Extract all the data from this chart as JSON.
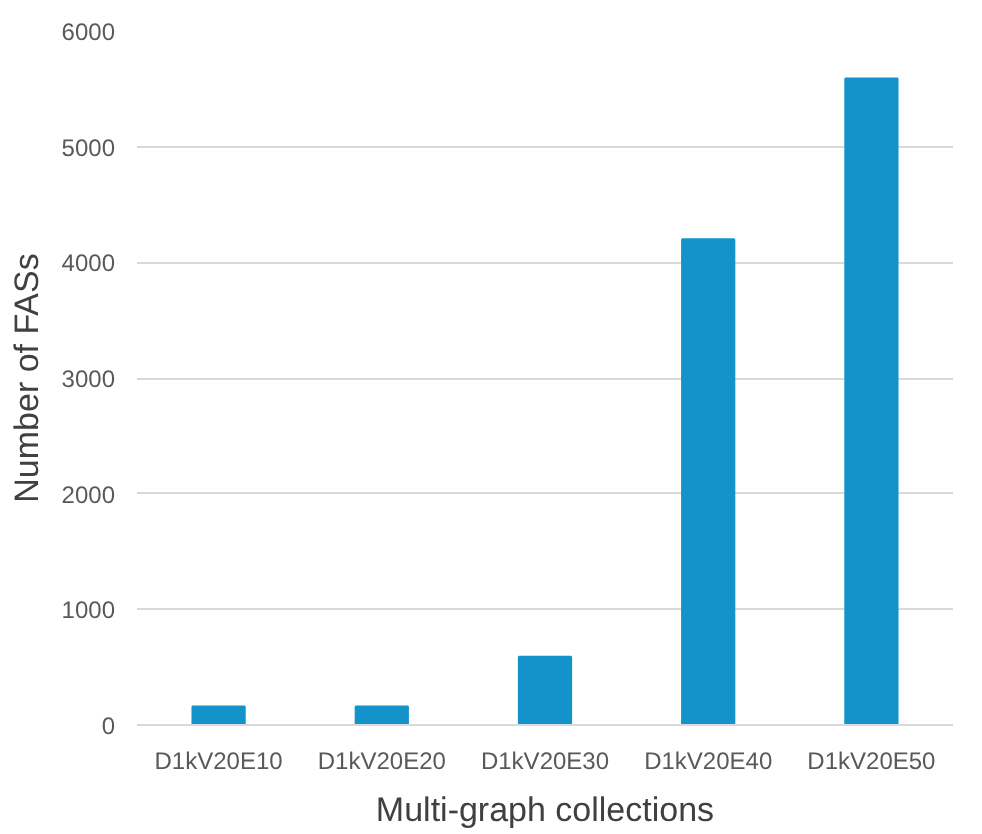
{
  "chart_data": {
    "type": "bar",
    "xlabel": "Multi-graph collections",
    "ylabel": "Number of FASs",
    "categories": [
      "D1kV20E10",
      "D1kV20E20",
      "D1kV20E30",
      "D1kV20E40",
      "D1kV20E50"
    ],
    "values": [
      160,
      160,
      590,
      4200,
      5590
    ],
    "color": "#1393c9",
    "ylim": [
      0,
      6000
    ],
    "yticks": [
      0,
      1000,
      2000,
      3000,
      4000,
      5000,
      6000
    ],
    "grid": "y"
  }
}
